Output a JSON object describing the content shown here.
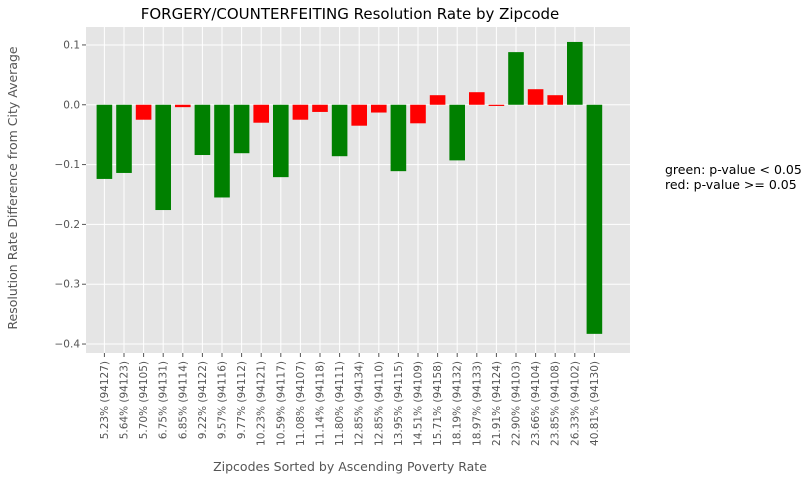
{
  "chart_data": {
    "type": "bar",
    "title": "FORGERY/COUNTERFEITING Resolution Rate by Zipcode",
    "xlabel": "Zipcodes Sorted by Ascending Poverty Rate",
    "ylabel": "Resolution Rate Difference from City Average",
    "ylim": [
      -0.415,
      0.13
    ],
    "yticks": [
      0.1,
      0.0,
      -0.1,
      -0.2,
      -0.3,
      -0.4
    ],
    "ytick_labels": [
      "0.1",
      "0.0",
      "−0.1",
      "−0.2",
      "−0.3",
      "−0.4"
    ],
    "grid": true,
    "categories": [
      "5.23% (94127)",
      "5.64% (94123)",
      "5.70% (94105)",
      "6.75% (94131)",
      "6.85% (94114)",
      "9.22% (94122)",
      "9.57% (94116)",
      "9.77% (94112)",
      "10.23% (94121)",
      "10.59% (94117)",
      "11.08% (94107)",
      "11.14% (94118)",
      "11.80% (94111)",
      "12.85% (94134)",
      "12.85% (94110)",
      "13.95% (94115)",
      "14.51% (94109)",
      "15.71% (94158)",
      "18.19% (94132)",
      "18.97% (94133)",
      "21.91% (94124)",
      "22.90% (94103)",
      "23.66% (94104)",
      "23.85% (94108)",
      "26.33% (94102)",
      "40.81% (94130)"
    ],
    "values": [
      -0.124,
      -0.114,
      -0.025,
      -0.176,
      -0.004,
      -0.084,
      -0.155,
      -0.081,
      -0.03,
      -0.121,
      -0.025,
      -0.012,
      -0.086,
      -0.035,
      -0.013,
      -0.111,
      -0.031,
      0.016,
      -0.093,
      0.021,
      -0.002,
      0.088,
      0.026,
      0.016,
      0.105,
      -0.383
    ],
    "significant": [
      true,
      true,
      false,
      true,
      false,
      true,
      true,
      true,
      false,
      true,
      false,
      false,
      true,
      false,
      false,
      true,
      false,
      false,
      true,
      false,
      false,
      true,
      false,
      false,
      true,
      true
    ],
    "colors": {
      "significant": "#008000",
      "not_significant": "#ff0000"
    },
    "annotations": [
      "green: p-value < 0.05",
      "red: p-value >= 0.05"
    ]
  },
  "style": {
    "plot_background": "#e5e5e5",
    "grid_color": "#ffffff",
    "text_color": "#555555"
  }
}
